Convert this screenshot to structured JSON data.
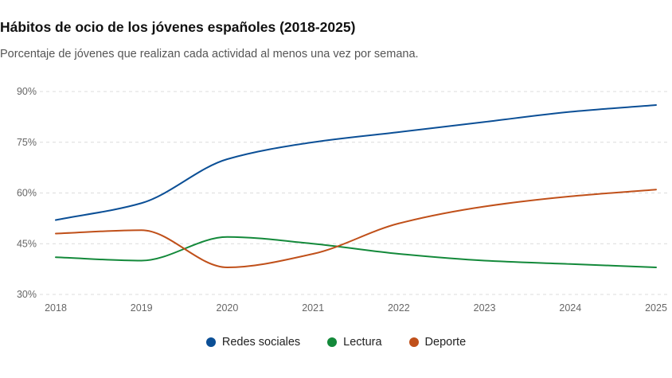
{
  "title": "Hábitos de ocio de los jóvenes españoles (2018-2025)",
  "subtitle": "Porcentaje de jóvenes que realizan cada actividad al menos una vez por semana.",
  "chart_data": {
    "type": "line",
    "title": "Hábitos de ocio de los jóvenes españoles (2018-2025)",
    "subtitle": "Porcentaje de jóvenes que realizan cada actividad al menos una vez por semana.",
    "x": [
      2018,
      2019,
      2020,
      2021,
      2022,
      2023,
      2024,
      2025
    ],
    "x_tick_labels": [
      "2018",
      "2019",
      "2020",
      "2021",
      "2022",
      "2023",
      "2024",
      "2025"
    ],
    "ylim": [
      30,
      90
    ],
    "y_ticks": [
      30,
      45,
      60,
      75,
      90
    ],
    "y_tick_labels": [
      "30%",
      "45%",
      "60%",
      "75%",
      "90%"
    ],
    "grid": true,
    "legend_position": "bottom-center",
    "series": [
      {
        "name": "Redes sociales",
        "color": "#0b4f96",
        "values": [
          52,
          57,
          70,
          75,
          78,
          81,
          84,
          86
        ]
      },
      {
        "name": "Lectura",
        "color": "#13893a",
        "values": [
          41,
          40,
          47,
          45,
          42,
          40,
          39,
          38
        ]
      },
      {
        "name": "Deporte",
        "color": "#c0501a",
        "values": [
          48,
          49,
          38,
          42,
          51,
          56,
          59,
          61
        ]
      }
    ]
  }
}
